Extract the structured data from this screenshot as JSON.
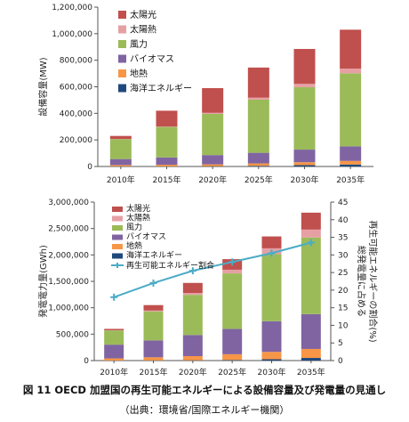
{
  "colors": {
    "solar_pv": "#c0504d",
    "solar_thermal": "#e6a0a4",
    "wind": "#9bbb59",
    "bio": "#8064a2",
    "geo": "#f79646",
    "ocean": "#1f497d",
    "share_line": "#4bacc6"
  },
  "chart_data": [
    {
      "type": "bar",
      "stacked": true,
      "categories": [
        "2010年",
        "2015年",
        "2020年",
        "2025年",
        "2030年",
        "2035年"
      ],
      "ylabel": "設備容量(MW)",
      "ylim": [
        0,
        1200000
      ],
      "yticks": [
        "0",
        "200,000",
        "400,000",
        "600,000",
        "800,000",
        "1,000,000",
        "1,200,000"
      ],
      "legend_position": "top-left",
      "grid": false,
      "series": [
        {
          "name": "海洋エネルギー",
          "key": "ocean",
          "values": [
            1000,
            1000,
            2000,
            5000,
            10000,
            15000
          ]
        },
        {
          "name": "地熱",
          "key": "geo",
          "values": [
            10000,
            12000,
            14000,
            18000,
            22000,
            27000
          ]
        },
        {
          "name": "バイオマス",
          "key": "bio",
          "values": [
            45000,
            55000,
            70000,
            80000,
            95000,
            110000
          ]
        },
        {
          "name": "風力",
          "key": "wind",
          "values": [
            150000,
            230000,
            310000,
            400000,
            470000,
            550000
          ]
        },
        {
          "name": "太陽熱",
          "key": "solar_thermal",
          "values": [
            1000,
            3000,
            8000,
            15000,
            25000,
            35000
          ]
        },
        {
          "name": "太陽光",
          "key": "solar_pv",
          "values": [
            23000,
            119000,
            186000,
            227000,
            263000,
            293000
          ]
        }
      ]
    },
    {
      "type": "bar",
      "stacked": true,
      "categories": [
        "2010年",
        "2015年",
        "2020年",
        "2025年",
        "2030年",
        "2035年"
      ],
      "ylabel": "発電電力量(GWh)",
      "ylim": [
        0,
        3000000
      ],
      "yticks": [
        "0",
        "500,000",
        "1,000,000",
        "1,500,000",
        "2,000,000",
        "2,500,000",
        "3,000,000"
      ],
      "y2label": "総発電量に占める 再生可能エネルギーの割合(%)",
      "y2lim": [
        0,
        45
      ],
      "y2ticks": [
        "0",
        "5",
        "10",
        "15",
        "20",
        "25",
        "30",
        "35",
        "40",
        "45"
      ],
      "legend_position": "top-left",
      "grid": false,
      "series": [
        {
          "name": "海洋エネルギー",
          "key": "ocean",
          "values": [
            1000,
            2000,
            4000,
            10000,
            25000,
            50000
          ]
        },
        {
          "name": "地熱",
          "key": "geo",
          "values": [
            40000,
            60000,
            80000,
            110000,
            140000,
            170000
          ]
        },
        {
          "name": "バイオマス",
          "key": "bio",
          "values": [
            260000,
            320000,
            400000,
            480000,
            580000,
            660000
          ]
        },
        {
          "name": "風力",
          "key": "wind",
          "values": [
            270000,
            550000,
            760000,
            1050000,
            1270000,
            1450000
          ]
        },
        {
          "name": "太陽熱",
          "key": "solar_thermal",
          "values": [
            3000,
            15000,
            35000,
            70000,
            110000,
            150000
          ]
        },
        {
          "name": "太陽光",
          "key": "solar_pv",
          "values": [
            26000,
            103000,
            191000,
            200000,
            225000,
            320000
          ]
        }
      ],
      "line_series": {
        "name": "再生可能エネルギー割合",
        "axis": "right",
        "values": [
          18,
          22,
          25.5,
          28,
          30.5,
          33.5
        ]
      }
    }
  ],
  "caption": {
    "title": "図 11  OECD 加盟国の再生可能エネルギーによる設備容量及び発電量の見通し",
    "source": "（出典：環境省/国際エネルギー機関）"
  }
}
